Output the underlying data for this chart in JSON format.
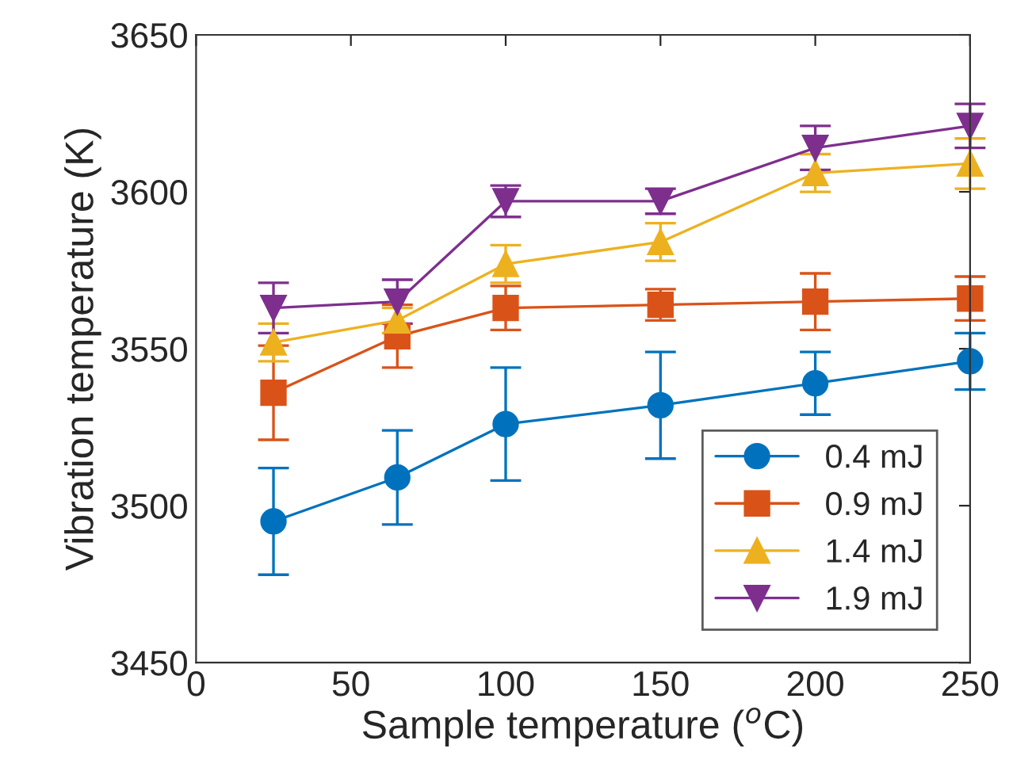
{
  "chart_data": {
    "type": "line",
    "xlabel": "Sample temperature ($^{o}$C)",
    "ylabel": "Vibration temperature (K)",
    "x": [
      25,
      65,
      100,
      150,
      200,
      250
    ],
    "xlim": [
      0,
      250
    ],
    "xticks": [
      0,
      50,
      100,
      150,
      200,
      250
    ],
    "ylim": [
      3450,
      3650
    ],
    "yticks": [
      3450,
      3500,
      3550,
      3600,
      3650
    ],
    "grid": false,
    "legend": "bottom right",
    "series": [
      {
        "name": "0.4 mJ",
        "color": "#0072bd",
        "marker": "circle",
        "values": [
          3495,
          3509,
          3526,
          3532,
          3539,
          3546
        ],
        "errors": [
          17,
          15,
          18,
          17,
          10,
          9
        ]
      },
      {
        "name": "0.9 mJ",
        "color": "#d95319",
        "marker": "square",
        "values": [
          3536,
          3554,
          3563,
          3564,
          3565,
          3566
        ],
        "errors": [
          15,
          10,
          7,
          5,
          9,
          7
        ]
      },
      {
        "name": "1.4 mJ",
        "color": "#edb120",
        "marker": "triangle",
        "values": [
          3552,
          3559,
          3577,
          3584,
          3606,
          3609
        ],
        "errors": [
          6,
          4,
          6,
          6,
          6,
          8
        ]
      },
      {
        "name": "1.9 mJ",
        "color": "#7e2f8e",
        "marker": "triangle_down",
        "values": [
          3563,
          3565,
          3597,
          3597,
          3614,
          3621
        ],
        "errors": [
          8,
          7,
          5,
          4,
          7,
          7
        ]
      }
    ]
  }
}
